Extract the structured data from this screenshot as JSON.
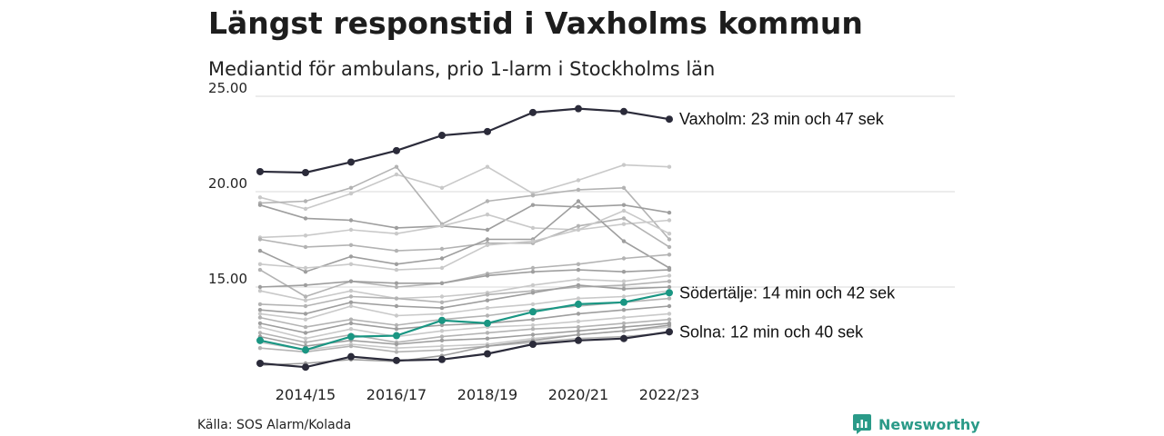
{
  "title": "Längst responstid i Vaxholms kommun",
  "subtitle": "Mediantid för ambulans, prio 1-larm i Stockholms län",
  "source": "Källa: SOS Alarm/Kolada",
  "brand": "Newsworthy",
  "colors": {
    "highlight_dark": "#2b2b3a",
    "highlight_teal": "#1a9683",
    "background_lines": [
      "#c9c9c9",
      "#b3b3b3",
      "#9e9e9e"
    ],
    "grid": "#d9d9d9",
    "brand": "#2a9a88"
  },
  "chart_data": {
    "type": "line",
    "title": "Längst responstid i Vaxholms kommun",
    "subtitle": "Mediantid för ambulans, prio 1-larm i Stockholms län",
    "x": [
      "2013/14",
      "2014/15",
      "2015/16",
      "2016/17",
      "2017/18",
      "2018/19",
      "2019/20",
      "2020/21",
      "2021/22",
      "2022/23"
    ],
    "x_tick_labels": [
      "2014/15",
      "2016/17",
      "2018/19",
      "2020/21",
      "2022/23"
    ],
    "y_ticks": [
      15,
      20,
      25
    ],
    "y_tick_labels": [
      "15.00",
      "20.00",
      "25.00"
    ],
    "ylim": [
      10.5,
      25.3
    ],
    "grid": true,
    "highlighted": [
      {
        "name": "Vaxholm",
        "label": "Vaxholm: 23 min och 47 sek",
        "color": "#2b2b3a",
        "values": [
          21.05,
          21.0,
          21.55,
          22.15,
          22.95,
          23.15,
          24.15,
          24.35,
          24.2,
          23.8
        ]
      },
      {
        "name": "Södertälje",
        "label": "Södertälje: 14 min och 42 sek",
        "color": "#1a9683",
        "values": [
          12.2,
          11.7,
          12.4,
          12.45,
          13.25,
          13.1,
          13.7,
          14.1,
          14.2,
          14.7
        ]
      },
      {
        "name": "Solna",
        "label": "Solna: 12 min och 40 sek",
        "color": "#2b2b3a",
        "values": [
          11.0,
          10.8,
          11.35,
          11.15,
          11.2,
          11.5,
          12.0,
          12.2,
          12.3,
          12.65
        ]
      }
    ],
    "other_series": [
      [
        19.7,
        19.1,
        19.9,
        20.9,
        20.2,
        21.3,
        19.9,
        20.6,
        21.4,
        21.3
      ],
      [
        19.4,
        19.5,
        20.2,
        21.3,
        18.3,
        19.5,
        19.8,
        20.1,
        20.2,
        17.5
      ],
      [
        19.3,
        18.6,
        18.5,
        18.1,
        18.2,
        18.0,
        19.3,
        19.2,
        19.3,
        18.9
      ],
      [
        17.6,
        17.7,
        18.0,
        17.8,
        18.2,
        18.8,
        18.1,
        18.0,
        18.3,
        18.5
      ],
      [
        17.5,
        17.1,
        17.2,
        16.9,
        17.0,
        17.3,
        17.3,
        18.2,
        18.6,
        17.1
      ],
      [
        16.9,
        15.8,
        16.6,
        16.2,
        16.5,
        17.5,
        17.5,
        19.5,
        17.4,
        16.0
      ],
      [
        16.2,
        16.0,
        16.2,
        15.9,
        16.0,
        17.2,
        17.4,
        18.0,
        19.0,
        17.8
      ],
      [
        15.9,
        14.5,
        15.3,
        15.0,
        15.2,
        15.7,
        16.0,
        16.2,
        16.5,
        16.7
      ],
      [
        15.0,
        15.1,
        15.3,
        15.2,
        15.2,
        15.6,
        15.8,
        15.9,
        15.8,
        15.9
      ],
      [
        14.8,
        14.3,
        14.8,
        14.4,
        14.5,
        14.7,
        15.1,
        15.4,
        15.3,
        15.6
      ],
      [
        14.1,
        14.0,
        14.5,
        14.4,
        14.2,
        14.6,
        14.8,
        15.0,
        15.1,
        15.3
      ],
      [
        13.8,
        13.6,
        14.2,
        14.0,
        13.9,
        14.3,
        14.7,
        15.1,
        14.9,
        15.0
      ],
      [
        13.6,
        13.3,
        14.0,
        13.5,
        13.6,
        13.9,
        14.1,
        14.4,
        14.5,
        14.8
      ],
      [
        13.4,
        12.9,
        13.3,
        13.0,
        13.3,
        13.5,
        13.8,
        14.0,
        14.2,
        14.4
      ],
      [
        13.1,
        12.6,
        13.1,
        12.8,
        13.0,
        13.1,
        13.3,
        13.6,
        13.8,
        14.0
      ],
      [
        12.9,
        12.3,
        12.8,
        12.4,
        12.7,
        12.9,
        13.0,
        13.2,
        13.4,
        13.6
      ],
      [
        12.6,
        12.1,
        12.5,
        12.1,
        12.4,
        12.6,
        12.8,
        12.9,
        13.1,
        13.3
      ],
      [
        12.4,
        11.9,
        12.2,
        12.0,
        12.2,
        12.3,
        12.5,
        12.7,
        12.9,
        13.1
      ],
      [
        12.1,
        11.7,
        12.0,
        11.8,
        11.9,
        12.0,
        12.3,
        12.5,
        12.7,
        12.9
      ],
      [
        11.8,
        11.6,
        11.9,
        11.6,
        11.7,
        11.9,
        12.1,
        12.3,
        12.4,
        12.6
      ],
      [
        10.9,
        11.0,
        11.2,
        11.1,
        11.4,
        11.9,
        12.2,
        12.5,
        12.7,
        13.0
      ]
    ]
  }
}
